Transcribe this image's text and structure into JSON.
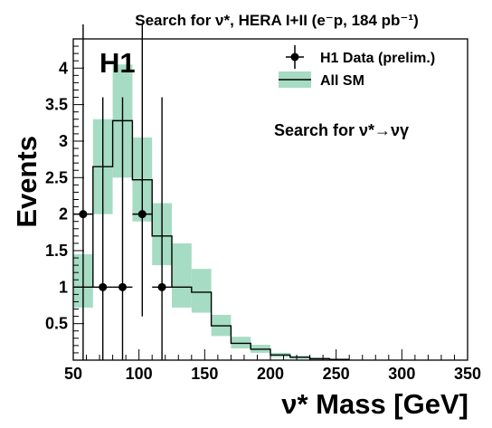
{
  "chart_data": {
    "type": "histogram",
    "title": "Search for ν*, HERA I+II (e⁻p, 184 pb⁻¹)",
    "experiment_label": "H1",
    "annotation": "Search for ν*→νγ",
    "xlabel": "ν* Mass [GeV]",
    "ylabel": "Events",
    "xlim": [
      50,
      350
    ],
    "ylim": [
      0,
      4.4
    ],
    "x_ticks": [
      50,
      100,
      150,
      200,
      250,
      300,
      350
    ],
    "y_ticks": [
      0.5,
      1,
      1.5,
      2,
      2.5,
      3,
      3.5,
      4
    ],
    "grid": false,
    "legend_position": "top-right",
    "series": [
      {
        "name": "H1 Data (prelim.)",
        "style": "points-with-errors",
        "points": [
          {
            "x": 57.5,
            "y": 2,
            "xerr": 7.5,
            "yerr_low": 2,
            "yerr_high": 2.6
          },
          {
            "x": 72.5,
            "y": 1,
            "xerr": 7.5,
            "yerr_low": 1,
            "yerr_high": 2.6
          },
          {
            "x": 87.5,
            "y": 1,
            "xerr": 7.5,
            "yerr_low": 1,
            "yerr_high": 2.6
          },
          {
            "x": 102.5,
            "y": 2,
            "xerr": 7.5,
            "yerr_low": 1.4,
            "yerr_high": 2.6
          },
          {
            "x": 117.5,
            "y": 1,
            "xerr": 7.5,
            "yerr_low": 1,
            "yerr_high": 2.6
          }
        ]
      },
      {
        "name": "All SM",
        "style": "step-with-band",
        "bins": [
          {
            "lo": 50,
            "hi": 65,
            "value": 1.0,
            "band_low": 0.72,
            "band_high": 1.45
          },
          {
            "lo": 65,
            "hi": 80,
            "value": 2.65,
            "band_low": 2.0,
            "band_high": 3.3
          },
          {
            "lo": 80,
            "hi": 95,
            "value": 3.28,
            "band_low": 2.5,
            "band_high": 4.05
          },
          {
            "lo": 95,
            "hi": 110,
            "value": 2.47,
            "band_low": 1.9,
            "band_high": 3.05
          },
          {
            "lo": 110,
            "hi": 125,
            "value": 1.7,
            "band_low": 1.3,
            "band_high": 2.15
          },
          {
            "lo": 125,
            "hi": 140,
            "value": 1.0,
            "band_low": 0.72,
            "band_high": 1.6
          },
          {
            "lo": 140,
            "hi": 155,
            "value": 0.93,
            "band_low": 0.65,
            "band_high": 1.25
          },
          {
            "lo": 155,
            "hi": 170,
            "value": 0.47,
            "band_low": 0.33,
            "band_high": 0.62
          },
          {
            "lo": 170,
            "hi": 185,
            "value": 0.23,
            "band_low": 0.16,
            "band_high": 0.32
          },
          {
            "lo": 185,
            "hi": 200,
            "value": 0.15,
            "band_low": 0.1,
            "band_high": 0.21
          },
          {
            "lo": 200,
            "hi": 215,
            "value": 0.07,
            "band_low": 0.04,
            "band_high": 0.1
          },
          {
            "lo": 215,
            "hi": 230,
            "value": 0.04,
            "band_low": 0.02,
            "band_high": 0.06
          },
          {
            "lo": 230,
            "hi": 245,
            "value": 0.02,
            "band_low": 0.01,
            "band_high": 0.03
          },
          {
            "lo": 245,
            "hi": 260,
            "value": 0.01,
            "band_low": 0.0,
            "band_high": 0.015
          }
        ]
      }
    ],
    "colors": {
      "band": "#a6dcc4",
      "line": "#000000",
      "points": "#000000"
    }
  }
}
